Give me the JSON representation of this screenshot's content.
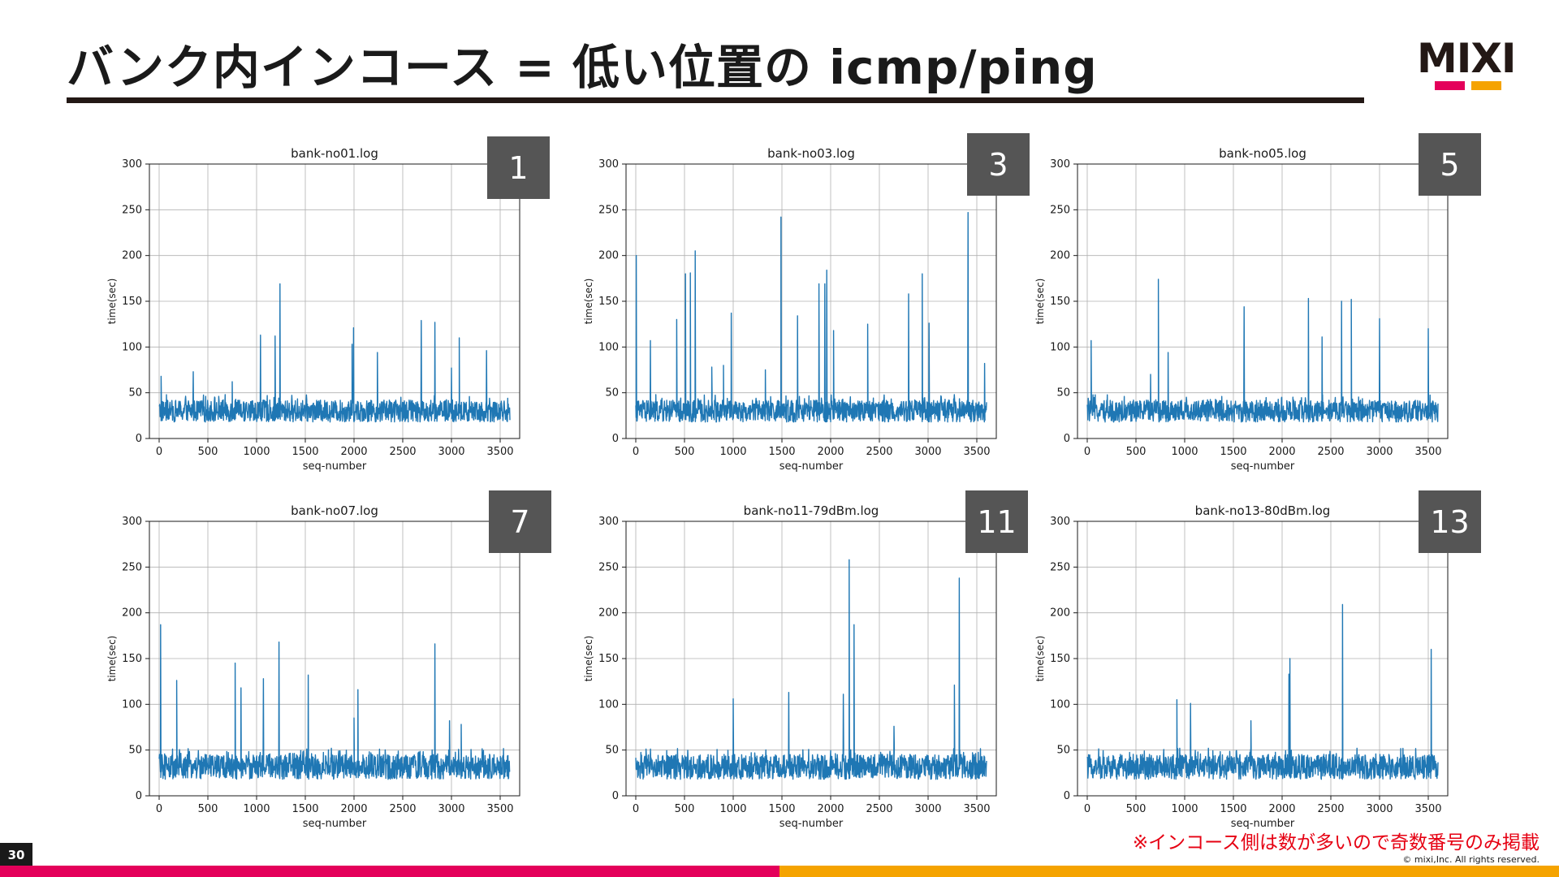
{
  "slide": {
    "title": "バンク内インコース = 低い位置の icmp/ping",
    "page_number": "30",
    "note": "※インコース側は数が多いので奇数番号のみ掲載",
    "copyright": "© mixi,Inc. All rights reserved.",
    "logo_text": "MIXI",
    "colors": {
      "accent_pink": "#e4005a",
      "accent_orange": "#f5a300",
      "line_blue": "#1f77b4",
      "title_rule": "#231815"
    }
  },
  "chart_data": [
    {
      "type": "line",
      "title": "bank-no01.log",
      "badge": "1",
      "xlabel": "seq-number",
      "ylabel": "time(sec)",
      "xlim": [
        -100,
        3700
      ],
      "ylim": [
        0,
        300
      ],
      "grid": true,
      "x_ticks": [
        "0",
        "500",
        "1000",
        "1500",
        "2000",
        "2500",
        "3000",
        "3500"
      ],
      "y_ticks": [
        "0",
        "50",
        "100",
        "150",
        "200",
        "250",
        "300"
      ],
      "series": [
        {
          "x_range": [
            0,
            3600
          ],
          "baseline": [
            18,
            48
          ],
          "spikes": [
            [
              20,
              68
            ],
            [
              350,
              73
            ],
            [
              750,
              62
            ],
            [
              1040,
              113
            ],
            [
              1190,
              112
            ],
            [
              1240,
              169
            ],
            [
              1980,
              103
            ],
            [
              1995,
              121
            ],
            [
              2240,
              94
            ],
            [
              2690,
              129
            ],
            [
              2830,
              127
            ],
            [
              3000,
              77
            ],
            [
              3080,
              110
            ],
            [
              3360,
              96
            ]
          ]
        }
      ]
    },
    {
      "type": "line",
      "title": "bank-no03.log",
      "badge": "3",
      "xlabel": "seq-number",
      "ylabel": "time(sec)",
      "xlim": [
        -100,
        3700
      ],
      "ylim": [
        0,
        300
      ],
      "grid": true,
      "x_ticks": [
        "0",
        "500",
        "1000",
        "1500",
        "2000",
        "2500",
        "3000",
        "3500"
      ],
      "y_ticks": [
        "0",
        "50",
        "100",
        "150",
        "200",
        "250",
        "300"
      ],
      "series": [
        {
          "x_range": [
            0,
            3600
          ],
          "baseline": [
            18,
            48
          ],
          "spikes": [
            [
              5,
              200
            ],
            [
              150,
              107
            ],
            [
              420,
              130
            ],
            [
              510,
              180
            ],
            [
              560,
              181
            ],
            [
              610,
              205
            ],
            [
              780,
              78
            ],
            [
              900,
              80
            ],
            [
              980,
              137
            ],
            [
              1330,
              75
            ],
            [
              1490,
              242
            ],
            [
              1660,
              134
            ],
            [
              1880,
              169
            ],
            [
              1940,
              169
            ],
            [
              1960,
              184
            ],
            [
              2030,
              118
            ],
            [
              2380,
              125
            ],
            [
              2800,
              158
            ],
            [
              2940,
              180
            ],
            [
              3010,
              126
            ],
            [
              3410,
              247
            ],
            [
              3580,
              82
            ]
          ]
        }
      ]
    },
    {
      "type": "line",
      "title": "bank-no05.log",
      "badge": "5",
      "xlabel": "seq-number",
      "ylabel": "time(sec)",
      "xlim": [
        -100,
        3700
      ],
      "ylim": [
        0,
        300
      ],
      "grid": true,
      "x_ticks": [
        "0",
        "500",
        "1000",
        "1500",
        "2000",
        "2500",
        "3000",
        "3500"
      ],
      "y_ticks": [
        "0",
        "50",
        "100",
        "150",
        "200",
        "250",
        "300"
      ],
      "series": [
        {
          "x_range": [
            0,
            3600
          ],
          "baseline": [
            18,
            48
          ],
          "spikes": [
            [
              40,
              107
            ],
            [
              650,
              70
            ],
            [
              730,
              174
            ],
            [
              830,
              94
            ],
            [
              1610,
              144
            ],
            [
              2270,
              153
            ],
            [
              2410,
              111
            ],
            [
              2610,
              150
            ],
            [
              2710,
              152
            ],
            [
              3000,
              131
            ],
            [
              3500,
              120
            ]
          ]
        }
      ]
    },
    {
      "type": "line",
      "title": "bank-no07.log",
      "badge": "7",
      "xlabel": "seq-number",
      "ylabel": "time(sec)",
      "xlim": [
        -100,
        3700
      ],
      "ylim": [
        0,
        300
      ],
      "grid": true,
      "x_ticks": [
        "0",
        "500",
        "1000",
        "1500",
        "2000",
        "2500",
        "3000",
        "3500"
      ],
      "y_ticks": [
        "0",
        "50",
        "100",
        "150",
        "200",
        "250",
        "300"
      ],
      "series": [
        {
          "x_range": [
            0,
            3600
          ],
          "baseline": [
            18,
            52
          ],
          "spikes": [
            [
              15,
              187
            ],
            [
              180,
              126
            ],
            [
              780,
              145
            ],
            [
              840,
              118
            ],
            [
              1070,
              128
            ],
            [
              1230,
              168
            ],
            [
              1530,
              132
            ],
            [
              2000,
              85
            ],
            [
              2040,
              116
            ],
            [
              2830,
              166
            ],
            [
              2980,
              82
            ],
            [
              3100,
              78
            ]
          ]
        }
      ]
    },
    {
      "type": "line",
      "title": "bank-no11-79dBm.log",
      "badge": "11",
      "xlabel": "seq-number",
      "ylabel": "time(sec)",
      "xlim": [
        -100,
        3700
      ],
      "ylim": [
        0,
        300
      ],
      "grid": true,
      "x_ticks": [
        "0",
        "500",
        "1000",
        "1500",
        "2000",
        "2500",
        "3000",
        "3500"
      ],
      "y_ticks": [
        "0",
        "50",
        "100",
        "150",
        "200",
        "250",
        "300"
      ],
      "series": [
        {
          "x_range": [
            0,
            3600
          ],
          "baseline": [
            18,
            52
          ],
          "spikes": [
            [
              1000,
              106
            ],
            [
              1570,
              113
            ],
            [
              2130,
              111
            ],
            [
              2190,
              258
            ],
            [
              2240,
              187
            ],
            [
              2650,
              76
            ],
            [
              3270,
              121
            ],
            [
              3320,
              238
            ]
          ]
        }
      ]
    },
    {
      "type": "line",
      "title": "bank-no13-80dBm.log",
      "badge": "13",
      "xlabel": "seq-number",
      "ylabel": "time(sec)",
      "xlim": [
        -100,
        3700
      ],
      "ylim": [
        0,
        300
      ],
      "grid": true,
      "x_ticks": [
        "0",
        "500",
        "1000",
        "1500",
        "2000",
        "2500",
        "3000",
        "3500"
      ],
      "y_ticks": [
        "0",
        "50",
        "100",
        "150",
        "200",
        "250",
        "300"
      ],
      "series": [
        {
          "x_range": [
            0,
            3600
          ],
          "baseline": [
            18,
            52
          ],
          "spikes": [
            [
              920,
              105
            ],
            [
              1060,
              101
            ],
            [
              1680,
              82
            ],
            [
              2070,
              133
            ],
            [
              2080,
              150
            ],
            [
              2620,
              209
            ],
            [
              3530,
              160
            ]
          ]
        }
      ]
    }
  ]
}
